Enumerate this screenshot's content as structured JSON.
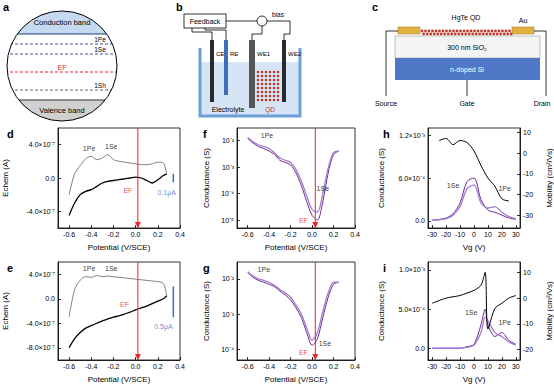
{
  "diagrams": {
    "a": {
      "label": "a",
      "conduction_band": "Conduction band",
      "p_level": "1Pe",
      "s_level": "1Se",
      "fermi": "EF",
      "h_level": "1Sh",
      "valence_band": "Valence band"
    },
    "b": {
      "label": "b",
      "feedback": "Feedback",
      "bias": "bias",
      "ce": "CE",
      "re": "RE",
      "we1": "WE1",
      "we2": "WE2",
      "qd": "QD",
      "electrolyte": "Electrolyte"
    },
    "c": {
      "label": "c",
      "material": "HgTe QD",
      "contact": "Au",
      "oxide": "300 nm SiO₂",
      "substrate": "n-doped Si",
      "source": "Source",
      "gate": "Gate",
      "drain": "Drain"
    }
  },
  "chart_data": [
    {
      "panel": "d",
      "type": "line",
      "xlabel": "Potential (V/SCE)",
      "ylabel": "Echem (A)",
      "xlim": [
        -0.7,
        0.4
      ],
      "xticks": [
        -0.6,
        -0.4,
        -0.2,
        {
          "value": 0,
          "label": "0.0"
        },
        0.2,
        0.4
      ],
      "ylim": [
        -6e-07,
        6e-07
      ],
      "yticks": [
        {
          "value": 4e-07,
          "label": "4.0×10⁻⁷"
        },
        {
          "value": 0,
          "label": "0.0"
        },
        {
          "value": -4e-07,
          "label": "-4.0×10⁻⁷"
        }
      ],
      "series": [
        {
          "color": "#808080",
          "x": [
            0.28,
            0.25,
            0.2,
            0.15,
            0.1,
            0.05,
            0,
            -0.05,
            -0.1,
            -0.15,
            -0.2,
            -0.25,
            -0.3,
            -0.35,
            -0.4,
            -0.45,
            -0.5,
            -0.55,
            -0.6
          ],
          "values": [
            5e-08,
            1.8e-07,
            1.9e-07,
            1.7e-07,
            1.6e-07,
            1.6e-07,
            1.7e-07,
            1.8e-07,
            1.9e-07,
            2e-07,
            2.2e-07,
            2.8e-07,
            2.4e-07,
            2.2e-07,
            2.6e-07,
            2.3e-07,
            1.5e-07,
            5e-08,
            -2e-07
          ]
        },
        {
          "color": "#000000",
          "x": [
            -0.6,
            -0.55,
            -0.5,
            -0.45,
            -0.4,
            -0.35,
            -0.3,
            -0.25,
            -0.2,
            -0.15,
            -0.1,
            -0.05,
            0,
            0.05,
            0.1,
            0.15,
            0.2,
            0.25,
            0.28
          ],
          "values": [
            -4.5e-07,
            -3e-07,
            -2e-07,
            -1.6e-07,
            -1.4e-07,
            -1e-07,
            -6e-08,
            -4e-08,
            -3e-08,
            -2e-08,
            -1e-08,
            0,
            1e-08,
            0,
            -3e-08,
            -6e-08,
            -2e-08,
            3e-08,
            5e-08
          ]
        }
      ],
      "annotations": [
        {
          "text": "1Pe",
          "x": -0.42,
          "y": 3.6e-07,
          "color": "#000000"
        },
        {
          "text": "1Se",
          "x": -0.22,
          "y": 3.8e-07,
          "color": "#000000"
        },
        {
          "text": "EF",
          "x": -0.07,
          "y": -1.5e-07,
          "color": "#e8262a"
        },
        {
          "text": "0.1μA",
          "x": 0.28,
          "y": -1.7e-07,
          "color": "#3b6fd4"
        }
      ],
      "vlines": [
        {
          "x": 0.02,
          "color": "#e8262a"
        }
      ],
      "scale_bar": {
        "x": 0.34,
        "from": -5e-08,
        "to": 5e-08,
        "color": "#3b6fd4"
      }
    },
    {
      "panel": "e",
      "type": "line",
      "xlabel": "Potential (V/SCE)",
      "ylabel": "Echem (A)",
      "xlim": [
        -0.7,
        0.4
      ],
      "xticks": [
        -0.6,
        -0.4,
        -0.2,
        {
          "value": 0,
          "label": "0.0"
        },
        0.2,
        0.4
      ],
      "ylim": [
        -1e-06,
        6e-07
      ],
      "yticks": [
        {
          "value": 4e-07,
          "label": "4.0×10⁻⁷"
        },
        {
          "value": 0,
          "label": "0.0"
        },
        {
          "value": -4e-07,
          "label": "-4.0×10⁻⁷"
        },
        {
          "value": -8e-07,
          "label": "-8.0×10⁻⁷"
        }
      ],
      "series": [
        {
          "color": "#808080",
          "x": [
            0.28,
            0.25,
            0.2,
            0.15,
            0.1,
            0.05,
            0,
            -0.05,
            -0.1,
            -0.15,
            -0.2,
            -0.25,
            -0.3,
            -0.35,
            -0.4,
            -0.45,
            -0.5,
            -0.55,
            -0.6
          ],
          "values": [
            5e-08,
            2.5e-07,
            2.8e-07,
            2.9e-07,
            3e-07,
            3.1e-07,
            3.2e-07,
            3.3e-07,
            3.4e-07,
            3.5e-07,
            3.6e-07,
            3.7e-07,
            3.6e-07,
            3.8e-07,
            3.5e-07,
            3.6e-07,
            3e-07,
            1.5e-07,
            -3e-07
          ]
        },
        {
          "color": "#000000",
          "x": [
            -0.6,
            -0.55,
            -0.5,
            -0.45,
            -0.4,
            -0.35,
            -0.3,
            -0.25,
            -0.2,
            -0.15,
            -0.1,
            -0.05,
            0,
            0.05,
            0.1,
            0.15,
            0.2,
            0.25,
            0.28
          ],
          "values": [
            -8e-07,
            -6.5e-07,
            -5.5e-07,
            -4.8e-07,
            -4.4e-07,
            -4e-07,
            -3.6e-07,
            -3.3e-07,
            -3e-07,
            -2.8e-07,
            -2.5e-07,
            -2.2e-07,
            -1.8e-07,
            -1.5e-07,
            -1.2e-07,
            -8e-08,
            -4e-08,
            0,
            5e-08
          ]
        }
      ],
      "annotations": [
        {
          "text": "1Pe",
          "x": -0.42,
          "y": 4.9e-07,
          "color": "#000000"
        },
        {
          "text": "1Se",
          "x": -0.22,
          "y": 5e-07,
          "color": "#000000"
        },
        {
          "text": "EF",
          "x": -0.1,
          "y": -1e-07,
          "color": "#e8262a"
        },
        {
          "text": "0.5μA",
          "x": 0.25,
          "y": -4.6e-07,
          "color": "#3b6fd4"
        }
      ],
      "vlines": [
        {
          "x": 0.02,
          "color": "#e8262a"
        }
      ],
      "scale_bar": {
        "x": 0.34,
        "from": -3e-07,
        "to": 2e-07,
        "color": "#3b6fd4"
      }
    },
    {
      "panel": "f",
      "type": "line",
      "log": "y",
      "xlabel": "Potential (V/SCE)",
      "ylabel": "Conductance (S)",
      "xlim": [
        -0.7,
        0.4
      ],
      "xticks": [
        -0.6,
        -0.4,
        -0.2,
        {
          "value": 0,
          "label": "0.0"
        },
        0.2,
        0.4
      ],
      "ylim": [
        5e-06,
        0.03
      ],
      "yticks": [
        {
          "value": 1e-05,
          "label": "10⁻⁵"
        },
        {
          "value": 0.0001,
          "label": "10⁻⁴"
        },
        {
          "value": 0.001,
          "label": "10⁻³"
        },
        {
          "value": 0.01,
          "label": "10⁻²"
        }
      ],
      "series": [
        {
          "color": "#6a2c91",
          "x": [
            -0.6,
            -0.55,
            -0.5,
            -0.45,
            -0.4,
            -0.35,
            -0.3,
            -0.25,
            -0.2,
            -0.15,
            -0.1,
            -0.05,
            0,
            0.05,
            0.1,
            0.15,
            0.2,
            0.25
          ],
          "values": [
            0.012,
            0.008,
            0.006,
            0.005,
            0.004,
            0.003,
            0.0018,
            0.0015,
            0.0012,
            0.0006,
            0.0002,
            5e-05,
            1.5e-05,
            1e-05,
            5e-05,
            0.0006,
            0.003,
            0.004
          ]
        },
        {
          "color": "#a47ad0",
          "x": [
            -0.6,
            -0.55,
            -0.5,
            -0.45,
            -0.4,
            -0.35,
            -0.3,
            -0.25,
            -0.2,
            -0.15,
            -0.1,
            -0.05,
            0,
            0.05,
            0.1,
            0.15,
            0.2,
            0.25
          ],
          "values": [
            0.013,
            0.009,
            0.007,
            0.006,
            0.005,
            0.0035,
            0.0022,
            0.0018,
            0.0015,
            0.0008,
            0.0003,
            8e-05,
            2.5e-05,
            2e-05,
            0.0001,
            0.0009,
            0.0035,
            0.004
          ]
        }
      ],
      "annotations": [
        {
          "text": "1Pe",
          "x": -0.42,
          "y": 0.015,
          "color": "#000000"
        },
        {
          "text": "1Se",
          "x": 0.1,
          "y": 0.00015,
          "color": "#000000"
        },
        {
          "text": "EF",
          "x": -0.08,
          "y": 1e-05,
          "color": "#e8262a"
        }
      ],
      "vlines": [
        {
          "x": 0.03,
          "color": "#e8262a"
        }
      ]
    },
    {
      "panel": "g",
      "type": "line",
      "log": "y",
      "xlabel": "Potential (V/SCE)",
      "ylabel": "Conductance (S)",
      "xlim": [
        -0.7,
        0.4
      ],
      "xticks": [
        -0.6,
        -0.4,
        -0.2,
        {
          "value": 0,
          "label": "0.0"
        },
        0.2,
        0.4
      ],
      "ylim": [
        5e-05,
        0.03
      ],
      "yticks": [
        {
          "value": 0.0001,
          "label": "10⁻⁴"
        },
        {
          "value": 0.001,
          "label": "10⁻³"
        },
        {
          "value": 0.01,
          "label": "10⁻²"
        }
      ],
      "series": [
        {
          "color": "#6a2c91",
          "x": [
            -0.6,
            -0.55,
            -0.5,
            -0.45,
            -0.4,
            -0.35,
            -0.3,
            -0.25,
            -0.2,
            -0.15,
            -0.1,
            -0.05,
            0,
            0.05,
            0.1,
            0.15,
            0.2,
            0.25
          ],
          "values": [
            0.015,
            0.011,
            0.009,
            0.008,
            0.007,
            0.006,
            0.0045,
            0.0035,
            0.0025,
            0.0015,
            0.0008,
            0.0003,
            0.00013,
            0.0002,
            0.0008,
            0.003,
            0.007,
            0.008
          ]
        },
        {
          "color": "#a47ad0",
          "x": [
            -0.6,
            -0.55,
            -0.5,
            -0.45,
            -0.4,
            -0.35,
            -0.3,
            -0.25,
            -0.2,
            -0.15,
            -0.1,
            -0.05,
            0,
            0.05,
            0.1,
            0.15,
            0.2,
            0.25
          ],
          "values": [
            0.016,
            0.012,
            0.01,
            0.009,
            0.008,
            0.0065,
            0.005,
            0.004,
            0.003,
            0.0018,
            0.001,
            0.0004,
            0.00018,
            0.0003,
            0.0012,
            0.004,
            0.008,
            0.008
          ]
        }
      ],
      "annotations": [
        {
          "text": "1Pe",
          "x": -0.45,
          "y": 0.018,
          "color": "#000000"
        },
        {
          "text": "1Se",
          "x": 0.12,
          "y": 0.00015,
          "color": "#000000"
        },
        {
          "text": "EF",
          "x": -0.08,
          "y": 8e-05,
          "color": "#e8262a"
        }
      ],
      "vlines": [
        {
          "x": 0.03,
          "color": "#e8262a"
        }
      ]
    },
    {
      "panel": "h",
      "type": "line",
      "xlabel": "Vg (V)",
      "ylabel": "Conductance (S)",
      "y2label": "Mobility (cm²/Vs)",
      "xlim": [
        -33,
        33
      ],
      "xticks": [
        -30,
        -20,
        -10,
        0,
        10,
        20,
        30
      ],
      "ylim": [
        -0.0001,
        0.0013
      ],
      "yticks": [
        {
          "value": 0,
          "label": "0.0"
        },
        {
          "value": 0.0006,
          "label": "6.0×10⁻⁴"
        },
        {
          "value": 0.0012,
          "label": "1.2×10⁻³"
        }
      ],
      "y2lim": [
        -36,
        12
      ],
      "y2ticks": [
        -30,
        -20,
        -10,
        0,
        10
      ],
      "series": [
        {
          "color": "#6a2c91",
          "x": [
            -30,
            -25,
            -20,
            -15,
            -10,
            -5,
            0,
            5,
            10,
            15,
            20,
            25,
            30
          ],
          "values": [
            1e-05,
            2e-05,
            4e-05,
            0.0001,
            0.00025,
            0.00055,
            0.0006,
            0.0003,
            0.00015,
            0.00012,
            8e-05,
            4e-05,
            2e-05
          ]
        },
        {
          "color": "#a47ad0",
          "x": [
            -30,
            -25,
            -20,
            -15,
            -10,
            -5,
            0,
            5,
            10,
            15,
            20,
            25,
            30
          ],
          "values": [
            1e-05,
            1.5e-05,
            3e-05,
            8e-05,
            0.0002,
            0.00045,
            0.0005,
            0.00025,
            0.00018,
            0.0002,
            0.00012,
            6e-05,
            3e-05
          ]
        },
        {
          "color": "#000000",
          "axis": "y2",
          "x": [
            -25,
            -20,
            -15,
            -10,
            -5,
            0,
            5,
            10,
            15,
            20,
            25
          ],
          "values": [
            6,
            7,
            4,
            6,
            5,
            1,
            -6,
            -12,
            -16,
            -22,
            -23
          ]
        }
      ],
      "annotations": [
        {
          "text": "1Se",
          "x": -15,
          "y": 0.0005,
          "color": "#000000"
        },
        {
          "text": "1Pe",
          "x": 22,
          "y": 0.00045,
          "color": "#000000"
        }
      ]
    },
    {
      "panel": "i",
      "type": "line",
      "xlabel": "Vg (V)",
      "ylabel": "Conductance (S)",
      "y2label": "Mobility (cm²/Vs)",
      "xlim": [
        -33,
        33
      ],
      "xticks": [
        -30,
        -20,
        -10,
        0,
        10,
        20,
        30
      ],
      "ylim": [
        -0.00015,
        0.0011
      ],
      "yticks": [
        {
          "value": 0,
          "label": "0.0"
        },
        {
          "value": 0.0005,
          "label": "5.0×10⁻⁴"
        },
        {
          "value": 0.001,
          "label": "1.0×10⁻³"
        }
      ],
      "y2lim": [
        -24,
        14
      ],
      "y2ticks": [
        -20,
        -10,
        0,
        10
      ],
      "series": [
        {
          "color": "#6a2c91",
          "x": [
            -30,
            -25,
            -20,
            -15,
            -10,
            -5,
            0,
            5,
            8,
            10,
            15,
            20,
            25,
            30
          ],
          "values": [
            0,
            0,
            0,
            0,
            0,
            2e-05,
            5e-05,
            0.0003,
            0.0005,
            0.0003,
            0.00015,
            0.0002,
            0.0001,
            5e-05
          ]
        },
        {
          "color": "#a47ad0",
          "x": [
            -30,
            -25,
            -20,
            -15,
            -10,
            -5,
            0,
            5,
            8,
            10,
            15,
            20,
            25,
            30
          ],
          "values": [
            0,
            0,
            0,
            0,
            0,
            1e-05,
            4e-05,
            0.0002,
            0.0004,
            0.00035,
            0.0002,
            0.00015,
            8e-05,
            4e-05
          ]
        },
        {
          "color": "#000000",
          "axis": "y2",
          "x": [
            -30,
            -20,
            -10,
            -5,
            0,
            5,
            8,
            10,
            15,
            20,
            25,
            30
          ],
          "values": [
            -2,
            0,
            1,
            2,
            3,
            5,
            10,
            -12,
            -4,
            -2,
            0,
            1
          ]
        }
      ],
      "annotations": [
        {
          "text": "1Se",
          "x": -2,
          "y": 0.00045,
          "color": "#000000"
        },
        {
          "text": "1Pe",
          "x": 22,
          "y": 0.00033,
          "color": "#000000"
        }
      ]
    }
  ]
}
